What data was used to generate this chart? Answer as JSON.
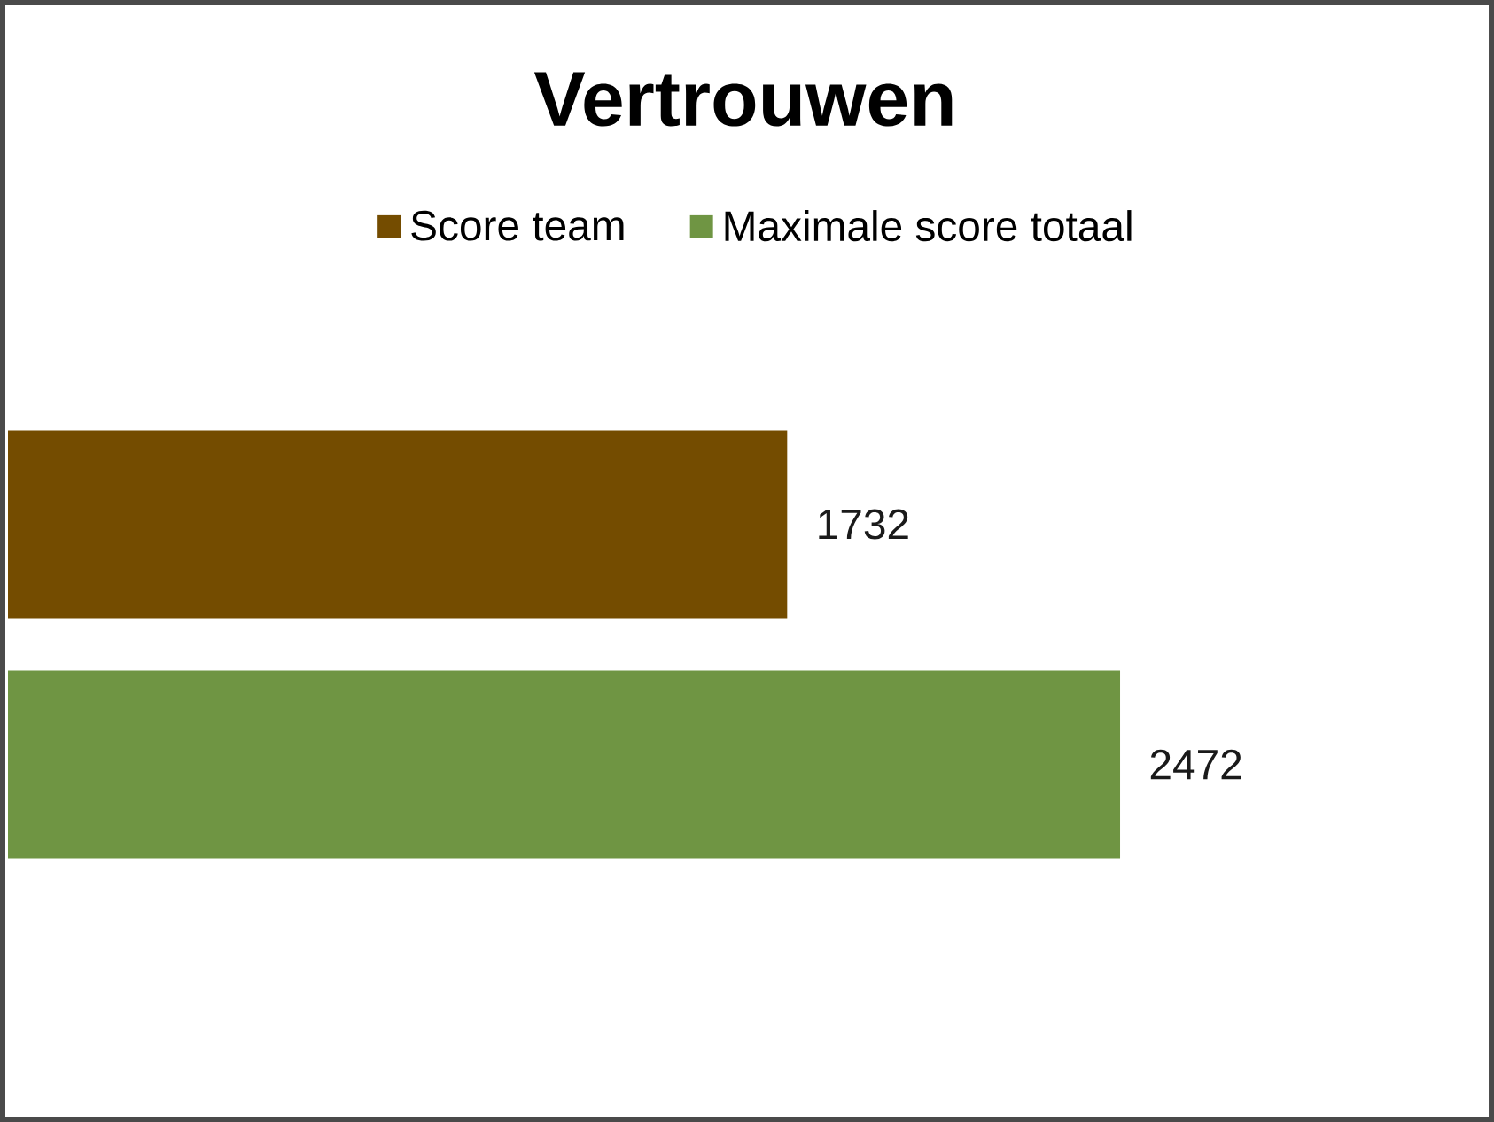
{
  "chart_data": {
    "type": "bar",
    "title": "Vertrouwen",
    "orientation": "horizontal",
    "categories": [
      null
    ],
    "series": [
      {
        "name": "Score team",
        "color": "#744c00",
        "values": [
          1732
        ]
      },
      {
        "name": "Maximale score totaal",
        "color": "#6f9543",
        "values": [
          2472
        ]
      }
    ],
    "data_labels": true,
    "legend": "top",
    "tick_labels": false
  }
}
